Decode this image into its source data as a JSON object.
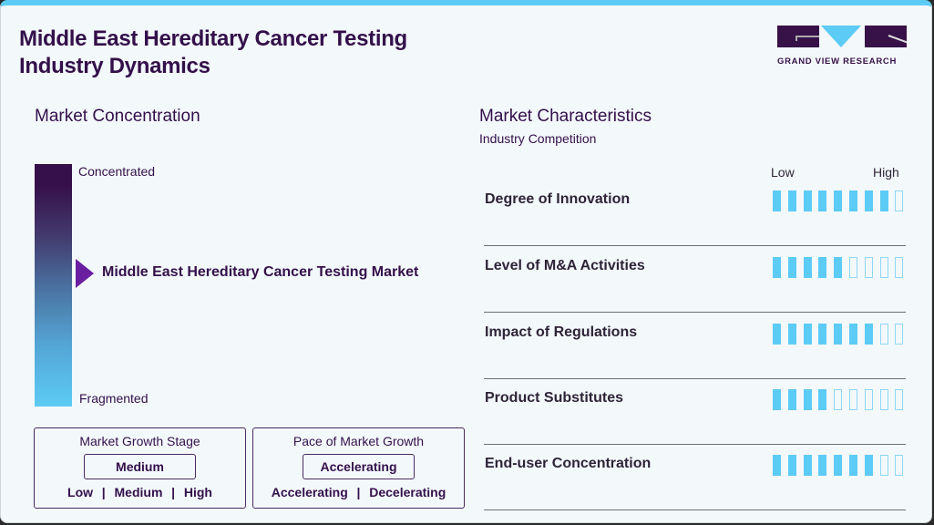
{
  "header": {
    "title_line1": "Middle East Hereditary Cancer Testing",
    "title_line2": "Industry Dynamics",
    "logo_text": "GRAND VIEW RESEARCH"
  },
  "colors": {
    "accent_blue": "#5ccbf5",
    "brand_purple": "#33104a",
    "marker_purple": "#6a1fa0",
    "background": "#f3f8fb"
  },
  "concentration": {
    "title": "Market Concentration",
    "top_label": "Concentrated",
    "bottom_label": "Fragmented",
    "market_label": "Middle East Hereditary Cancer Testing Market",
    "marker_position_pct": 45
  },
  "growth_stage": {
    "title": "Market Growth Stage",
    "value": "Medium",
    "options": "Low  |  Medium  |  High"
  },
  "growth_pace": {
    "title": "Pace of Market Growth",
    "value": "Accelerating",
    "options": "Accelerating  |  Decelerating"
  },
  "characteristics": {
    "title": "Market Characteristics",
    "subtitle": "Industry Competition",
    "scale_low": "Low",
    "scale_high": "High",
    "max_level": 9,
    "rows": [
      {
        "label": "Degree of Innovation",
        "level": 8
      },
      {
        "label": "Level of M&A Activities",
        "level": 5
      },
      {
        "label": "Impact of Regulations",
        "level": 7
      },
      {
        "label": "Product Substitutes",
        "level": 4
      },
      {
        "label": "End-user Concentration",
        "level": 7
      }
    ]
  }
}
